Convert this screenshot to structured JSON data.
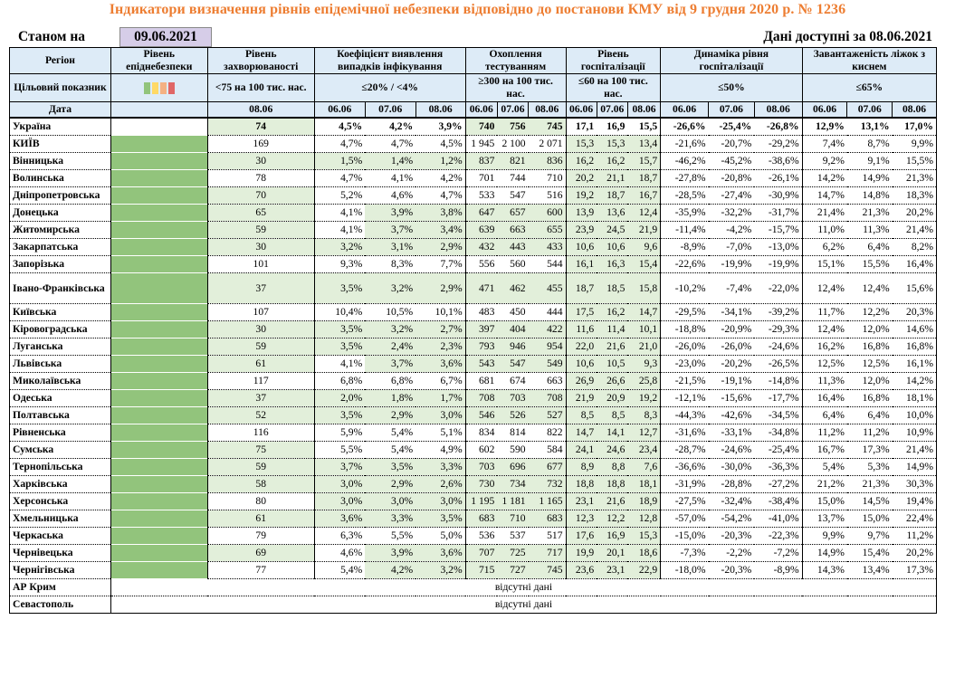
{
  "title": "Індикатори визначення рівнів епідемічної небезпеки відповідно до постанови КМУ від 9 грудня 2020 р. № 1236",
  "as_of_label": "Станом на",
  "as_of_date": "09.06.2021",
  "data_available": "Дані доступні за 08.06.2021",
  "headers": {
    "region": "Регіон",
    "level": "Рівень епіднебезпеки",
    "incidence": "Рівень захворюваності",
    "detection": "Коефіцієнт виявлення випадків інфікування",
    "testing": "Охоплення тестуванням",
    "hosp": "Рівень госпіталізації",
    "hosp_dyn": "Динаміка рівня госпіталізації",
    "beds": "Завантаженість ліжок з киснем"
  },
  "target_row": {
    "label": "Цільовий показник",
    "incidence": "<75 на 100 тис. нас.",
    "detection": "≤20% / <4%",
    "testing": "≥300 на 100 тис. нас.",
    "hosp": "≤60 на 100 тис. нас.",
    "hosp_dyn": "≤50%",
    "beds": "≤65%"
  },
  "level_colors": [
    "#92c47c",
    "#ffd966",
    "#f4b183",
    "#e06666"
  ],
  "date_row": {
    "label": "Дата",
    "incidence": "08.06",
    "d3": [
      "06.06",
      "07.06",
      "08.06"
    ]
  },
  "missing_text": "відсутні дані",
  "rows": [
    {
      "name": "Україна",
      "inc": "74",
      "det": [
        "4,5%",
        "4,2%",
        "3,9%"
      ],
      "test": [
        "740",
        "756",
        "745"
      ],
      "hosp": [
        "17,1",
        "16,9",
        "15,5"
      ],
      "dyn": [
        "-26,6%",
        "-25,4%",
        "-26,8%"
      ],
      "beds": [
        "12,9%",
        "13,1%",
        "17,0%"
      ],
      "g": [
        1,
        0,
        0,
        1,
        0,
        0,
        0
      ],
      "lvl": false,
      "bold": true
    },
    {
      "name": "КИЇВ",
      "inc": "169",
      "det": [
        "4,7%",
        "4,7%",
        "4,5%"
      ],
      "test": [
        "1 945",
        "2 100",
        "2 071"
      ],
      "hosp": [
        "15,3",
        "15,3",
        "13,4"
      ],
      "dyn": [
        "-21,6%",
        "-20,7%",
        "-29,2%"
      ],
      "beds": [
        "7,4%",
        "8,7%",
        "9,9%"
      ],
      "g": [
        0,
        0,
        0,
        0,
        1,
        1,
        1
      ],
      "lvl": true
    },
    {
      "name": "Вінницька",
      "inc": "30",
      "det": [
        "1,5%",
        "1,4%",
        "1,2%"
      ],
      "test": [
        "837",
        "821",
        "836"
      ],
      "hosp": [
        "16,2",
        "16,2",
        "15,7"
      ],
      "dyn": [
        "-46,2%",
        "-45,2%",
        "-38,6%"
      ],
      "beds": [
        "9,2%",
        "9,1%",
        "15,5%"
      ],
      "g": [
        1,
        1,
        1,
        1,
        1,
        1,
        1
      ],
      "lvl": true
    },
    {
      "name": "Волинська",
      "inc": "78",
      "det": [
        "4,7%",
        "4,1%",
        "4,2%"
      ],
      "test": [
        "701",
        "744",
        "710"
      ],
      "hosp": [
        "20,2",
        "21,1",
        "18,7"
      ],
      "dyn": [
        "-27,8%",
        "-20,8%",
        "-26,1%"
      ],
      "beds": [
        "14,2%",
        "14,9%",
        "21,3%"
      ],
      "g": [
        0,
        0,
        0,
        0,
        1,
        1,
        1
      ],
      "lvl": true
    },
    {
      "name": "Дніпропетровська",
      "inc": "70",
      "det": [
        "5,2%",
        "4,6%",
        "4,7%"
      ],
      "test": [
        "533",
        "547",
        "516"
      ],
      "hosp": [
        "19,2",
        "18,7",
        "16,7"
      ],
      "dyn": [
        "-28,5%",
        "-27,4%",
        "-30,9%"
      ],
      "beds": [
        "14,7%",
        "14,8%",
        "18,3%"
      ],
      "g": [
        1,
        0,
        0,
        0,
        1,
        1,
        1
      ],
      "lvl": true
    },
    {
      "name": "Донецька",
      "inc": "65",
      "det": [
        "4,1%",
        "3,9%",
        "3,8%"
      ],
      "test": [
        "647",
        "657",
        "600"
      ],
      "hosp": [
        "13,9",
        "13,6",
        "12,4"
      ],
      "dyn": [
        "-35,9%",
        "-32,2%",
        "-31,7%"
      ],
      "beds": [
        "21,4%",
        "21,3%",
        "20,2%"
      ],
      "g": [
        1,
        0,
        1,
        1,
        1,
        1,
        1
      ],
      "lvl": true
    },
    {
      "name": "Житомирська",
      "inc": "59",
      "det": [
        "4,1%",
        "3,7%",
        "3,4%"
      ],
      "test": [
        "639",
        "663",
        "655"
      ],
      "hosp": [
        "23,9",
        "24,5",
        "21,9"
      ],
      "dyn": [
        "-11,4%",
        "-4,2%",
        "-15,7%"
      ],
      "beds": [
        "11,0%",
        "11,3%",
        "21,4%"
      ],
      "g": [
        1,
        0,
        1,
        1,
        1,
        1,
        1
      ],
      "lvl": true
    },
    {
      "name": "Закарпатська",
      "inc": "30",
      "det": [
        "3,2%",
        "3,1%",
        "2,9%"
      ],
      "test": [
        "432",
        "443",
        "433"
      ],
      "hosp": [
        "10,6",
        "10,6",
        "9,6"
      ],
      "dyn": [
        "-8,9%",
        "-7,0%",
        "-13,0%"
      ],
      "beds": [
        "6,2%",
        "6,4%",
        "8,2%"
      ],
      "g": [
        1,
        1,
        1,
        1,
        1,
        1,
        1
      ],
      "lvl": true
    },
    {
      "name": "Запорізька",
      "inc": "101",
      "det": [
        "9,3%",
        "8,3%",
        "7,7%"
      ],
      "test": [
        "556",
        "560",
        "544"
      ],
      "hosp": [
        "16,1",
        "16,3",
        "15,4"
      ],
      "dyn": [
        "-22,6%",
        "-19,9%",
        "-19,9%"
      ],
      "beds": [
        "15,1%",
        "15,5%",
        "16,4%"
      ],
      "g": [
        0,
        0,
        0,
        0,
        1,
        1,
        1
      ],
      "lvl": true
    },
    {
      "name": "Івано-Франківська",
      "inc": "37",
      "det": [
        "3,5%",
        "3,2%",
        "2,9%"
      ],
      "test": [
        "471",
        "462",
        "455"
      ],
      "hosp": [
        "18,7",
        "18,5",
        "15,8"
      ],
      "dyn": [
        "-10,2%",
        "-7,4%",
        "-22,0%"
      ],
      "beds": [
        "12,4%",
        "12,4%",
        "15,6%"
      ],
      "g": [
        1,
        1,
        1,
        1,
        1,
        1,
        1
      ],
      "lvl": true,
      "tall": true
    },
    {
      "name": "Київська",
      "inc": "107",
      "det": [
        "10,4%",
        "10,5%",
        "10,1%"
      ],
      "test": [
        "483",
        "450",
        "444"
      ],
      "hosp": [
        "17,5",
        "16,2",
        "14,7"
      ],
      "dyn": [
        "-29,5%",
        "-34,1%",
        "-39,2%"
      ],
      "beds": [
        "11,7%",
        "12,2%",
        "20,3%"
      ],
      "g": [
        0,
        0,
        0,
        0,
        1,
        1,
        1
      ],
      "lvl": true
    },
    {
      "name": "Кіровоградська",
      "inc": "30",
      "det": [
        "3,5%",
        "3,2%",
        "2,7%"
      ],
      "test": [
        "397",
        "404",
        "422"
      ],
      "hosp": [
        "11,6",
        "11,4",
        "10,1"
      ],
      "dyn": [
        "-18,8%",
        "-20,9%",
        "-29,3%"
      ],
      "beds": [
        "12,4%",
        "12,0%",
        "14,6%"
      ],
      "g": [
        1,
        1,
        1,
        1,
        1,
        1,
        1
      ],
      "lvl": true
    },
    {
      "name": "Луганська",
      "inc": "59",
      "det": [
        "3,5%",
        "2,4%",
        "2,3%"
      ],
      "test": [
        "793",
        "946",
        "954"
      ],
      "hosp": [
        "22,0",
        "21,6",
        "21,0"
      ],
      "dyn": [
        "-26,0%",
        "-26,0%",
        "-24,6%"
      ],
      "beds": [
        "16,2%",
        "16,8%",
        "16,8%"
      ],
      "g": [
        1,
        1,
        1,
        1,
        1,
        1,
        1
      ],
      "lvl": true
    },
    {
      "name": "Львівська",
      "inc": "61",
      "det": [
        "4,1%",
        "3,7%",
        "3,6%"
      ],
      "test": [
        "543",
        "547",
        "549"
      ],
      "hosp": [
        "10,6",
        "10,5",
        "9,3"
      ],
      "dyn": [
        "-23,0%",
        "-20,2%",
        "-26,5%"
      ],
      "beds": [
        "12,5%",
        "12,5%",
        "16,1%"
      ],
      "g": [
        1,
        0,
        1,
        1,
        1,
        1,
        1
      ],
      "lvl": true
    },
    {
      "name": "Миколаївська",
      "inc": "117",
      "det": [
        "6,8%",
        "6,8%",
        "6,7%"
      ],
      "test": [
        "681",
        "674",
        "663"
      ],
      "hosp": [
        "26,9",
        "26,6",
        "25,8"
      ],
      "dyn": [
        "-21,5%",
        "-19,1%",
        "-14,8%"
      ],
      "beds": [
        "11,3%",
        "12,0%",
        "14,2%"
      ],
      "g": [
        0,
        0,
        0,
        0,
        1,
        1,
        1
      ],
      "lvl": true
    },
    {
      "name": "Одеська",
      "inc": "37",
      "det": [
        "2,0%",
        "1,8%",
        "1,7%"
      ],
      "test": [
        "708",
        "703",
        "708"
      ],
      "hosp": [
        "21,9",
        "20,9",
        "19,2"
      ],
      "dyn": [
        "-12,1%",
        "-15,6%",
        "-17,7%"
      ],
      "beds": [
        "16,4%",
        "16,8%",
        "18,1%"
      ],
      "g": [
        1,
        1,
        1,
        1,
        1,
        1,
        1
      ],
      "lvl": true
    },
    {
      "name": "Полтавська",
      "inc": "52",
      "det": [
        "3,5%",
        "2,9%",
        "3,0%"
      ],
      "test": [
        "546",
        "526",
        "527"
      ],
      "hosp": [
        "8,5",
        "8,5",
        "8,3"
      ],
      "dyn": [
        "-44,3%",
        "-42,6%",
        "-34,5%"
      ],
      "beds": [
        "6,4%",
        "6,4%",
        "10,0%"
      ],
      "g": [
        1,
        1,
        1,
        1,
        1,
        1,
        1
      ],
      "lvl": true
    },
    {
      "name": "Рівненська",
      "inc": "116",
      "det": [
        "5,9%",
        "5,4%",
        "5,1%"
      ],
      "test": [
        "834",
        "814",
        "822"
      ],
      "hosp": [
        "14,7",
        "14,1",
        "12,7"
      ],
      "dyn": [
        "-31,6%",
        "-33,1%",
        "-34,8%"
      ],
      "beds": [
        "11,2%",
        "11,2%",
        "10,9%"
      ],
      "g": [
        0,
        0,
        0,
        0,
        1,
        1,
        1
      ],
      "lvl": true
    },
    {
      "name": "Сумська",
      "inc": "75",
      "det": [
        "5,5%",
        "5,4%",
        "4,9%"
      ],
      "test": [
        "602",
        "590",
        "584"
      ],
      "hosp": [
        "24,1",
        "24,6",
        "23,4"
      ],
      "dyn": [
        "-28,7%",
        "-24,6%",
        "-25,4%"
      ],
      "beds": [
        "16,7%",
        "17,3%",
        "21,4%"
      ],
      "g": [
        1,
        0,
        0,
        0,
        1,
        1,
        1
      ],
      "lvl": true
    },
    {
      "name": "Тернопільська",
      "inc": "59",
      "det": [
        "3,7%",
        "3,5%",
        "3,3%"
      ],
      "test": [
        "703",
        "696",
        "677"
      ],
      "hosp": [
        "8,9",
        "8,8",
        "7,6"
      ],
      "dyn": [
        "-36,6%",
        "-30,0%",
        "-36,3%"
      ],
      "beds": [
        "5,4%",
        "5,3%",
        "14,9%"
      ],
      "g": [
        1,
        1,
        1,
        1,
        1,
        1,
        1
      ],
      "lvl": true
    },
    {
      "name": "Харківська",
      "inc": "58",
      "det": [
        "3,0%",
        "2,9%",
        "2,6%"
      ],
      "test": [
        "730",
        "734",
        "732"
      ],
      "hosp": [
        "18,8",
        "18,8",
        "18,1"
      ],
      "dyn": [
        "-31,9%",
        "-28,8%",
        "-27,2%"
      ],
      "beds": [
        "21,2%",
        "21,3%",
        "30,3%"
      ],
      "g": [
        1,
        1,
        1,
        1,
        1,
        1,
        1
      ],
      "lvl": true
    },
    {
      "name": "Херсонська",
      "inc": "80",
      "det": [
        "3,0%",
        "3,0%",
        "3,0%"
      ],
      "test": [
        "1 195",
        "1 181",
        "1 165"
      ],
      "hosp": [
        "23,1",
        "21,6",
        "18,9"
      ],
      "dyn": [
        "-27,5%",
        "-32,4%",
        "-38,4%"
      ],
      "beds": [
        "15,0%",
        "14,5%",
        "19,4%"
      ],
      "g": [
        0,
        1,
        1,
        1,
        1,
        1,
        1
      ],
      "lvl": true
    },
    {
      "name": "Хмельницька",
      "inc": "61",
      "det": [
        "3,6%",
        "3,3%",
        "3,5%"
      ],
      "test": [
        "683",
        "710",
        "683"
      ],
      "hosp": [
        "12,3",
        "12,2",
        "12,8"
      ],
      "dyn": [
        "-57,0%",
        "-54,2%",
        "-41,0%"
      ],
      "beds": [
        "13,7%",
        "15,0%",
        "22,4%"
      ],
      "g": [
        1,
        1,
        1,
        1,
        1,
        1,
        1
      ],
      "lvl": true
    },
    {
      "name": "Черкаська",
      "inc": "79",
      "det": [
        "6,3%",
        "5,5%",
        "5,0%"
      ],
      "test": [
        "536",
        "537",
        "517"
      ],
      "hosp": [
        "17,6",
        "16,9",
        "15,3"
      ],
      "dyn": [
        "-15,0%",
        "-20,3%",
        "-22,3%"
      ],
      "beds": [
        "9,9%",
        "9,7%",
        "11,2%"
      ],
      "g": [
        0,
        0,
        0,
        0,
        1,
        1,
        1
      ],
      "lvl": true
    },
    {
      "name": "Чернівецька",
      "inc": "69",
      "det": [
        "4,6%",
        "3,9%",
        "3,6%"
      ],
      "test": [
        "707",
        "725",
        "717"
      ],
      "hosp": [
        "19,9",
        "20,1",
        "18,6"
      ],
      "dyn": [
        "-7,3%",
        "-2,2%",
        "-7,2%"
      ],
      "beds": [
        "14,9%",
        "15,4%",
        "20,2%"
      ],
      "g": [
        1,
        0,
        1,
        1,
        1,
        1,
        1
      ],
      "lvl": true
    },
    {
      "name": "Чернігівська",
      "inc": "77",
      "det": [
        "5,4%",
        "4,2%",
        "3,2%"
      ],
      "test": [
        "715",
        "727",
        "745"
      ],
      "hosp": [
        "23,6",
        "23,1",
        "22,9"
      ],
      "dyn": [
        "-18,0%",
        "-20,3%",
        "-8,9%"
      ],
      "beds": [
        "14,3%",
        "13,4%",
        "17,3%"
      ],
      "g": [
        0,
        0,
        1,
        1,
        1,
        1,
        1
      ],
      "lvl": true
    }
  ],
  "missing_rows": [
    "АР Крим",
    "Севастополь"
  ]
}
